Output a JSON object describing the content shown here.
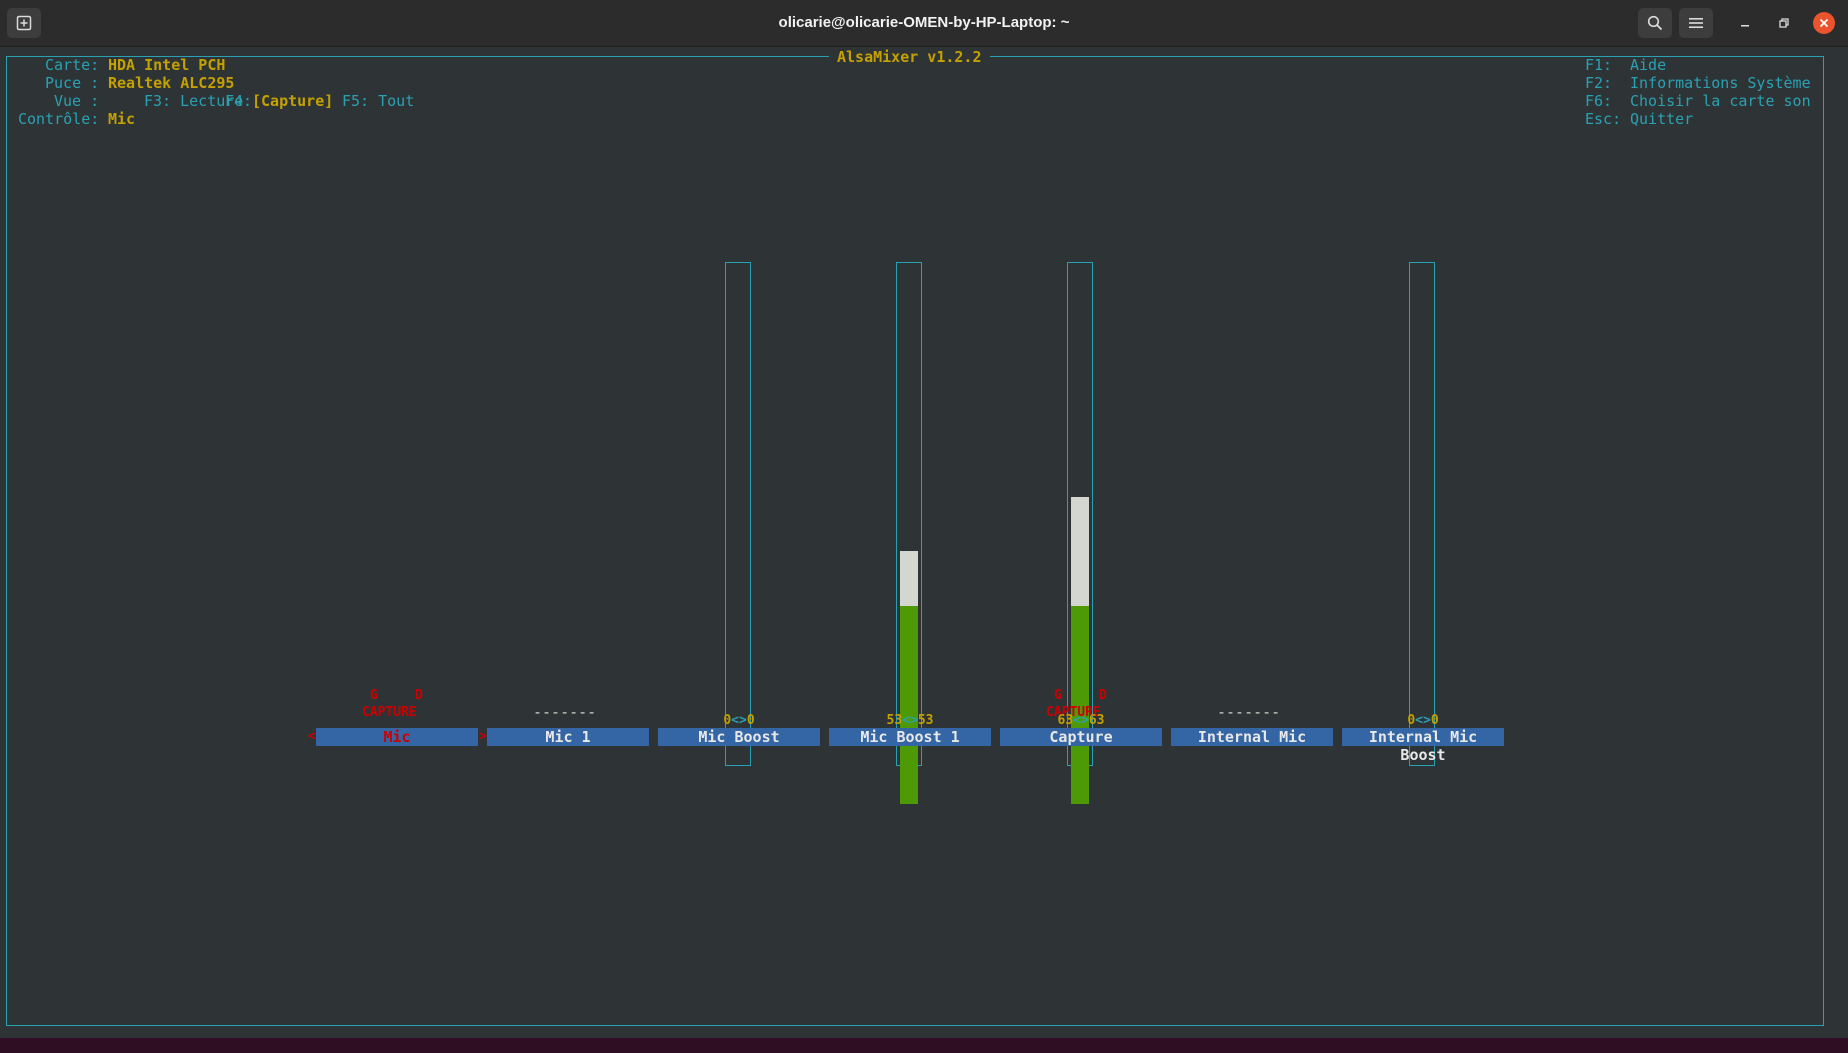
{
  "window": {
    "title": "olicarie@olicarie-OMEN-by-HP-Laptop: ~",
    "icons": [
      "new-tab-icon",
      "search-icon",
      "hamburger-menu-icon",
      "minimize-icon",
      "maximize-icon",
      "close-icon"
    ]
  },
  "app": {
    "title": "AlsaMixer v1.2.2"
  },
  "info": {
    "card_label": "Carte:",
    "card_value": "HDA Intel PCH",
    "chip_label": "Puce :",
    "chip_value": "Realtek ALC295",
    "view_label": "Vue :",
    "view_f3": "F3: Lecture",
    "view_f4_key": "F4:",
    "view_f4_value": "[Capture]",
    "view_f5": "F5: Tout",
    "control_label": "Contrôle:",
    "control_value": "Mic"
  },
  "help": [
    {
      "key": "F1:",
      "text": "Aide"
    },
    {
      "key": "F2:",
      "text": "Informations Système"
    },
    {
      "key": "F6:",
      "text": "Choisir la carte son"
    },
    {
      "key": "Esc:",
      "text": "Quitter"
    }
  ],
  "colors": {
    "frame": "#2aa1b3",
    "accent_yellow": "#c4a000",
    "capture_red": "#cc0000",
    "level_green": "#4e9a06",
    "level_white": "#d3d7cf",
    "label_blue": "#3465a4"
  },
  "channels": [
    {
      "name": "Mic",
      "selected": true,
      "left_mark": "<",
      "right_mark": ">",
      "lr_left": "G",
      "lr_right": "D",
      "capture": "CAPTURE",
      "has_bar": false
    },
    {
      "name": "Mic 1",
      "selected": false,
      "dashes": "-------",
      "has_bar": false
    },
    {
      "name": "Mic Boost",
      "selected": false,
      "value_left": "0",
      "value_sep": "<>",
      "value_right": "0",
      "has_bar": true,
      "level": 0
    },
    {
      "name": "Mic Boost 1",
      "selected": false,
      "value_left": "53",
      "value_sep": "<>",
      "value_right": "53",
      "has_bar": true,
      "level": 0.53
    },
    {
      "name": "Capture",
      "selected": false,
      "lr_left": "G",
      "lr_right": "D",
      "capture": "CAPTURE",
      "value_left": "63",
      "value_sep": "<>",
      "value_right": "63",
      "has_bar": true,
      "level": 0.63
    },
    {
      "name": "Internal Mic",
      "selected": false,
      "dashes": "-------",
      "has_bar": false
    },
    {
      "name": "Internal Mic Boost",
      "selected": false,
      "value_left": "0",
      "value_sep": "<>",
      "value_right": "0",
      "has_bar": true,
      "level": 0
    }
  ]
}
